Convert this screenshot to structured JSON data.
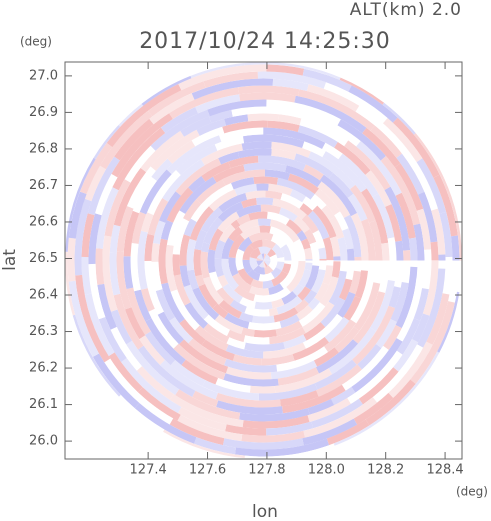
{
  "chart_data": {
    "type": "ppi",
    "title": "2017/10/24 14:25:30",
    "annotation": "ALT(km) 2.0",
    "xlabel": "lon",
    "ylabel": "lat",
    "xunit": "(deg)",
    "yunit": "(deg)",
    "xlim": [
      127.12,
      128.457
    ],
    "ylim": [
      25.951,
      27.038
    ],
    "xticks": [
      127.4,
      127.6,
      127.8,
      {
        "value": 128.0,
        "label": "128.0"
      },
      128.2,
      128.4
    ],
    "yticks": [
      {
        "value": 26.0,
        "label": "26.0"
      },
      26.1,
      26.2,
      26.3,
      26.4,
      26.5,
      26.6,
      26.7,
      26.8,
      26.9,
      {
        "value": 27.0,
        "label": "27.0"
      }
    ]
  }
}
